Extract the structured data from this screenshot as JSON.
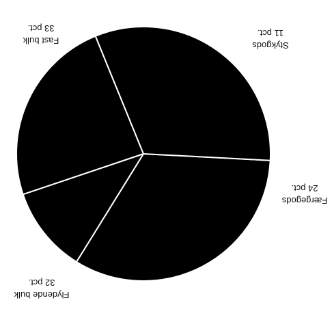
{
  "chart_data": {
    "type": "pie",
    "orientation": "rotated 180 degrees (image upside down)",
    "slices": [
      {
        "name": "Fast bulk",
        "value": 33,
        "value_label": "33 pct."
      },
      {
        "name": "Stykgods",
        "value": 11,
        "value_label": "11 pct."
      },
      {
        "name": "Færgegods",
        "value": 24,
        "value_label": "24 pct."
      },
      {
        "name": "Flydende bulk",
        "value": 32,
        "value_label": "32 pct."
      }
    ],
    "colors": {
      "fill": "#000000",
      "separator": "#ffffff",
      "background": "#ffffff",
      "text": "#111111"
    }
  }
}
